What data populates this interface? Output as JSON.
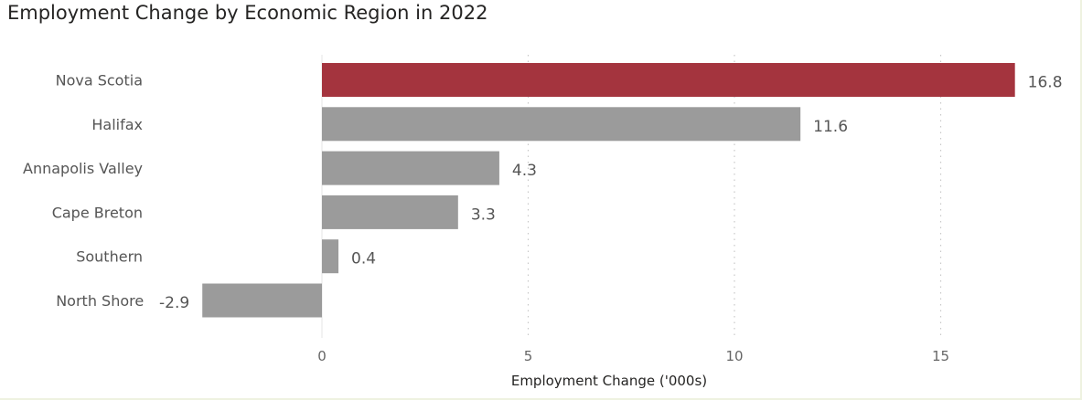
{
  "chart_data": {
    "type": "bar",
    "orientation": "horizontal",
    "title": "Employment Change by Economic Region in 2022",
    "xlabel": "Employment Change ('000s)",
    "ylabel": "",
    "categories": [
      "Nova Scotia",
      "Halifax",
      "Annapolis Valley",
      "Cape Breton",
      "Southern",
      "North Shore"
    ],
    "values": [
      16.8,
      11.6,
      4.3,
      3.3,
      0.4,
      -2.9
    ],
    "value_labels": [
      "16.8",
      "11.6",
      "4.3",
      "3.3",
      "0.4",
      "-2.9"
    ],
    "xlim": [
      -2.9,
      16.8
    ],
    "xticks": [
      0,
      5,
      10,
      15
    ],
    "xtick_labels": [
      "0",
      "5",
      "10",
      "15"
    ],
    "grid": "vertical dotted",
    "legend": "none",
    "colors": {
      "highlight": "#a4343e",
      "default": "#9b9b9b",
      "highlight_category": "Nova Scotia"
    }
  }
}
